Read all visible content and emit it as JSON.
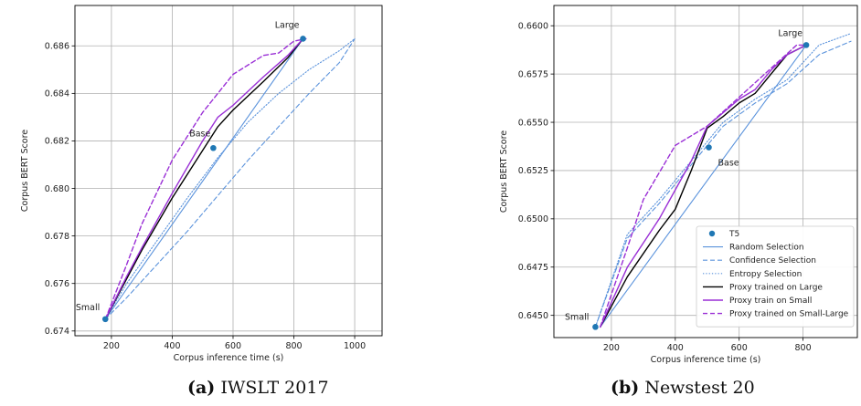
{
  "colors": {
    "t5": "#1f77b4",
    "random": "#5b93dc",
    "confidence": "#5b93dc",
    "entropy": "#5b93dc",
    "proxy_large": "#000000",
    "proxy_small": "#9a2fd6",
    "proxy_small_large": "#9a2fd6"
  },
  "captions": [
    {
      "label": "(a)",
      "text": "IWSLT 2017"
    },
    {
      "label": "(b)",
      "text": "Newstest 20"
    }
  ],
  "chart_data": [
    {
      "type": "line",
      "xlabel": "Corpus inference time (s)",
      "ylabel": "Corpus BERT Score",
      "xlim": [
        80,
        1090
      ],
      "ylim": [
        0.6738,
        0.6877
      ],
      "xticks": [
        200,
        400,
        600,
        800,
        1000
      ],
      "yticks": [
        0.674,
        0.676,
        0.678,
        0.68,
        0.682,
        0.684,
        0.686
      ],
      "ytick_labels": [
        "0.674",
        "0.676",
        "0.678",
        "0.680",
        "0.682",
        "0.684",
        "0.686"
      ],
      "grid": true,
      "points": [
        {
          "name": "Small",
          "x": 180,
          "y": 0.6745
        },
        {
          "name": "Base",
          "x": 535,
          "y": 0.6817
        },
        {
          "name": "Large",
          "x": 830,
          "y": 0.6863
        }
      ],
      "series": [
        {
          "key": "random",
          "style": "solid",
          "x": [
            180,
            830
          ],
          "y": [
            0.6745,
            0.6863
          ]
        },
        {
          "key": "confidence",
          "style": "dashed",
          "x": [
            180,
            250,
            350,
            450,
            550,
            650,
            750,
            850,
            950,
            1000
          ],
          "y": [
            0.6745,
            0.6754,
            0.6768,
            0.6782,
            0.6797,
            0.6812,
            0.6826,
            0.684,
            0.6853,
            0.6863
          ]
        },
        {
          "key": "entropy",
          "style": "dotted",
          "x": [
            180,
            250,
            350,
            450,
            550,
            650,
            750,
            850,
            950,
            1000
          ],
          "y": [
            0.6745,
            0.676,
            0.6778,
            0.6796,
            0.6813,
            0.6828,
            0.684,
            0.685,
            0.6858,
            0.6863
          ]
        },
        {
          "key": "proxy_large",
          "style": "solid",
          "x": [
            180,
            250,
            300,
            400,
            500,
            550,
            600,
            700,
            780,
            830
          ],
          "y": [
            0.6745,
            0.6762,
            0.6774,
            0.6796,
            0.6816,
            0.6826,
            0.6833,
            0.6845,
            0.6855,
            0.6863
          ]
        },
        {
          "key": "proxy_small",
          "style": "solid",
          "x": [
            180,
            250,
            300,
            400,
            500,
            550,
            600,
            700,
            780,
            830
          ],
          "y": [
            0.6745,
            0.6763,
            0.6775,
            0.6798,
            0.682,
            0.683,
            0.6835,
            0.6847,
            0.6856,
            0.6863
          ]
        },
        {
          "key": "proxy_small_large",
          "style": "dashed",
          "x": [
            180,
            250,
            300,
            400,
            500,
            600,
            700,
            750,
            800,
            840
          ],
          "y": [
            0.6745,
            0.6768,
            0.6785,
            0.6812,
            0.6832,
            0.6848,
            0.6856,
            0.6857,
            0.6862,
            0.6863
          ]
        }
      ]
    },
    {
      "type": "line",
      "xlabel": "Corpus inference time (s)",
      "ylabel": "Corpus BERT Score",
      "xlim": [
        20,
        970
      ],
      "ylim": [
        0.64385,
        0.66105
      ],
      "xticks": [
        200,
        400,
        600,
        800
      ],
      "yticks": [
        0.645,
        0.6475,
        0.65,
        0.6525,
        0.655,
        0.6575,
        0.66
      ],
      "ytick_labels": [
        "0.6450",
        "0.6475",
        "0.6500",
        "0.6525",
        "0.6550",
        "0.6575",
        "0.6600"
      ],
      "grid": true,
      "points": [
        {
          "name": "Small",
          "x": 150,
          "y": 0.6444
        },
        {
          "name": "Base",
          "x": 505,
          "y": 0.6537
        },
        {
          "name": "Large",
          "x": 810,
          "y": 0.659
        }
      ],
      "series": [
        {
          "key": "random",
          "name": "Random Selection",
          "style": "solid",
          "x": [
            165,
            810
          ],
          "y": [
            0.6444,
            0.659
          ]
        },
        {
          "key": "confidence",
          "name": "Confidence Selection",
          "style": "dashed",
          "x": [
            150,
            250,
            350,
            450,
            550,
            650,
            750,
            850,
            950
          ],
          "y": [
            0.6444,
            0.649,
            0.6508,
            0.6528,
            0.6548,
            0.656,
            0.657,
            0.6585,
            0.6592
          ]
        },
        {
          "key": "entropy",
          "name": "Entropy Selection",
          "style": "dotted",
          "x": [
            150,
            250,
            350,
            450,
            550,
            650,
            750,
            850,
            950
          ],
          "y": [
            0.6444,
            0.6492,
            0.651,
            0.653,
            0.655,
            0.6562,
            0.6572,
            0.659,
            0.6596
          ]
        },
        {
          "key": "proxy_large",
          "name": "Proxy trained on Large",
          "style": "solid",
          "x": [
            165,
            250,
            350,
            400,
            450,
            500,
            550,
            600,
            650,
            700,
            750,
            810
          ],
          "y": [
            0.6444,
            0.647,
            0.6494,
            0.6505,
            0.6525,
            0.6547,
            0.6553,
            0.656,
            0.6565,
            0.6575,
            0.6585,
            0.659
          ]
        },
        {
          "key": "proxy_small",
          "name": "Proxy train on Small",
          "style": "solid",
          "x": [
            165,
            250,
            350,
            400,
            450,
            500,
            550,
            600,
            650,
            700,
            750,
            810
          ],
          "y": [
            0.6444,
            0.6475,
            0.65,
            0.6515,
            0.653,
            0.6548,
            0.6555,
            0.6562,
            0.6567,
            0.6577,
            0.6585,
            0.659
          ]
        },
        {
          "key": "proxy_small_large",
          "name": "Proxy trained on Small-Large",
          "style": "dashed",
          "x": [
            165,
            250,
            300,
            400,
            500,
            600,
            700,
            780,
            810
          ],
          "y": [
            0.6444,
            0.6485,
            0.651,
            0.6538,
            0.6548,
            0.6563,
            0.6578,
            0.659,
            0.659
          ]
        }
      ],
      "legend": {
        "placement": "lower-right",
        "entries": [
          "T5",
          "Random Selection",
          "Confidence Selection",
          "Entropy Selection",
          "Proxy trained on Large",
          "Proxy train on Small",
          "Proxy trained on Small-Large"
        ]
      }
    }
  ]
}
